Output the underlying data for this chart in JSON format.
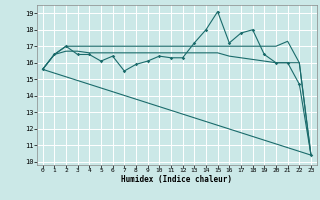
{
  "xlabel": "Humidex (Indice chaleur)",
  "bg_color": "#cbe8e7",
  "grid_color": "#ffffff",
  "line_color": "#1a6b6b",
  "xlim": [
    -0.5,
    23.5
  ],
  "ylim": [
    9.8,
    19.5
  ],
  "xticks": [
    0,
    1,
    2,
    3,
    4,
    5,
    6,
    7,
    8,
    9,
    10,
    11,
    12,
    13,
    14,
    15,
    16,
    17,
    18,
    19,
    20,
    21,
    22,
    23
  ],
  "yticks": [
    10,
    11,
    12,
    13,
    14,
    15,
    16,
    17,
    18,
    19
  ],
  "line1_x": [
    0,
    1,
    2,
    3,
    4,
    5,
    6,
    7,
    8,
    9,
    10,
    11,
    12,
    13,
    14,
    15,
    16,
    17,
    18,
    19,
    20,
    21,
    22,
    23
  ],
  "line1_y": [
    15.6,
    16.5,
    17.0,
    16.5,
    16.5,
    16.1,
    16.4,
    15.5,
    15.9,
    16.1,
    16.4,
    16.3,
    16.3,
    17.2,
    18.0,
    19.1,
    17.2,
    17.8,
    18.0,
    16.5,
    16.0,
    16.0,
    14.7,
    10.4
  ],
  "line2_x": [
    0,
    1,
    2,
    3,
    4,
    5,
    6,
    7,
    8,
    9,
    10,
    11,
    12,
    13,
    14,
    15,
    16,
    17,
    18,
    19,
    20,
    21,
    22,
    23
  ],
  "line2_y": [
    15.6,
    16.5,
    17.0,
    17.0,
    17.0,
    17.0,
    17.0,
    17.0,
    17.0,
    17.0,
    17.0,
    17.0,
    17.0,
    17.0,
    17.0,
    17.0,
    17.0,
    17.0,
    17.0,
    17.0,
    17.0,
    17.3,
    16.0,
    10.4
  ],
  "line3_x": [
    0,
    1,
    2,
    3,
    4,
    5,
    6,
    7,
    8,
    9,
    10,
    11,
    12,
    13,
    14,
    15,
    16,
    17,
    18,
    19,
    20,
    21,
    22,
    23
  ],
  "line3_y": [
    15.6,
    16.5,
    16.7,
    16.7,
    16.6,
    16.6,
    16.6,
    16.6,
    16.6,
    16.6,
    16.6,
    16.6,
    16.6,
    16.6,
    16.6,
    16.6,
    16.4,
    16.3,
    16.2,
    16.1,
    16.0,
    16.0,
    16.0,
    10.4
  ],
  "line4_x": [
    0,
    23
  ],
  "line4_y": [
    15.6,
    10.4
  ]
}
